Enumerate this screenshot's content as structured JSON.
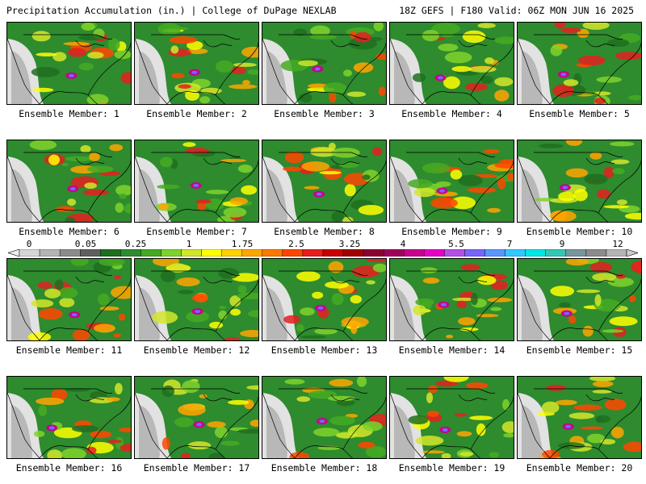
{
  "header": {
    "left_title": "Precipitation Accumulation (in.) | College of DuPage NEXLAB",
    "right_title": "18Z GEFS | F180 Valid: 06Z MON JUN 16 2025"
  },
  "panels": [
    {
      "caption": "Ensemble Member: 1"
    },
    {
      "caption": "Ensemble Member: 2"
    },
    {
      "caption": "Ensemble Member: 3"
    },
    {
      "caption": "Ensemble Member: 4"
    },
    {
      "caption": "Ensemble Member: 5"
    },
    {
      "caption": "Ensemble Member: 6"
    },
    {
      "caption": "Ensemble Member: 7"
    },
    {
      "caption": "Ensemble Member: 8"
    },
    {
      "caption": "Ensemble Member: 9"
    },
    {
      "caption": "Ensemble Member: 10"
    },
    {
      "caption": "Ensemble Member: 11"
    },
    {
      "caption": "Ensemble Member: 12"
    },
    {
      "caption": "Ensemble Member: 13"
    },
    {
      "caption": "Ensemble Member: 14"
    },
    {
      "caption": "Ensemble Member: 15"
    },
    {
      "caption": "Ensemble Member: 16"
    },
    {
      "caption": "Ensemble Member: 17"
    },
    {
      "caption": "Ensemble Member: 18"
    },
    {
      "caption": "Ensemble Member: 19"
    },
    {
      "caption": "Ensemble Member: 20"
    }
  ],
  "colorbar": {
    "labels": [
      "0",
      "0.05",
      "0.25",
      "1",
      "1.75",
      "2.5",
      "3.25",
      "4",
      "5.5",
      "7",
      "9",
      "12"
    ],
    "colors": [
      "#d6d6d6",
      "#b4b4b4",
      "#8c8c8c",
      "#5f5f5f",
      "#1e6e1e",
      "#2e8b2e",
      "#44aa22",
      "#7fd22a",
      "#d2e62a",
      "#ffff00",
      "#ffd200",
      "#ffa500",
      "#ff7800",
      "#ff4600",
      "#e61e1e",
      "#c80000",
      "#a00000",
      "#8c0032",
      "#a0005a",
      "#c8008c",
      "#e600c8",
      "#b450e6",
      "#7864ff",
      "#5a96ff",
      "#32c8ff",
      "#00e6e6",
      "#32c8b4",
      "#7896a0",
      "#8c8c8c",
      "#b4b4b4"
    ]
  }
}
